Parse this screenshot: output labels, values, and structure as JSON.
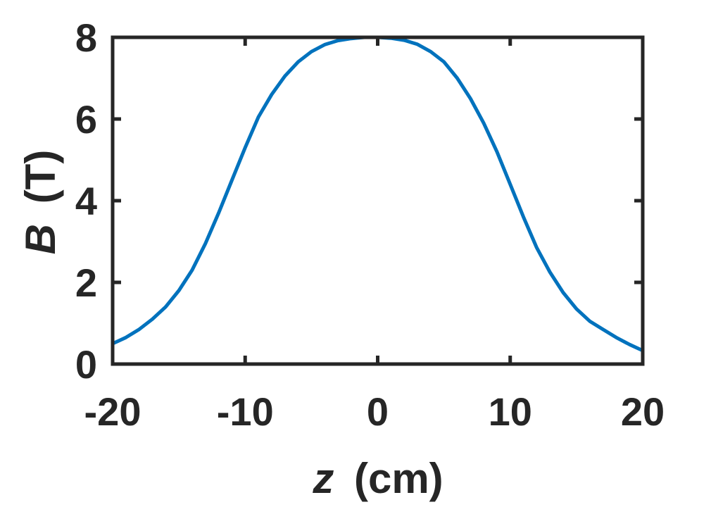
{
  "chart_data": {
    "type": "line",
    "title": "",
    "xlabel_var": "z",
    "xlabel_unit": "(cm)",
    "ylabel_var": "B",
    "ylabel_unit": "(T)",
    "xlim": [
      -20,
      20
    ],
    "ylim": [
      0,
      8
    ],
    "xticks": [
      -20,
      -10,
      0,
      10,
      20
    ],
    "yticks": [
      0,
      2,
      4,
      6,
      8
    ],
    "grid": false,
    "legend": "none",
    "line_color": "#0072BD",
    "axis_color": "#262626",
    "series": [
      {
        "x": [
          -20,
          -19,
          -18,
          -17,
          -16,
          -15,
          -14,
          -13,
          -12,
          -11,
          -10,
          -9,
          -8,
          -7,
          -6,
          -5,
          -4,
          -3,
          -2,
          -1,
          0,
          1,
          2,
          3,
          4,
          5,
          6,
          7,
          8,
          9,
          10,
          11,
          12,
          13,
          14,
          15,
          16,
          17,
          18,
          19,
          20
        ],
        "y": [
          0.5,
          0.65,
          0.85,
          1.1,
          1.4,
          1.8,
          2.3,
          2.95,
          3.7,
          4.5,
          5.3,
          6.05,
          6.6,
          7.05,
          7.4,
          7.65,
          7.82,
          7.92,
          7.97,
          8.0,
          8.0,
          7.98,
          7.93,
          7.83,
          7.65,
          7.4,
          7.0,
          6.5,
          5.9,
          5.2,
          4.4,
          3.6,
          2.85,
          2.25,
          1.75,
          1.35,
          1.05,
          0.85,
          0.65,
          0.48,
          0.33
        ]
      }
    ]
  }
}
